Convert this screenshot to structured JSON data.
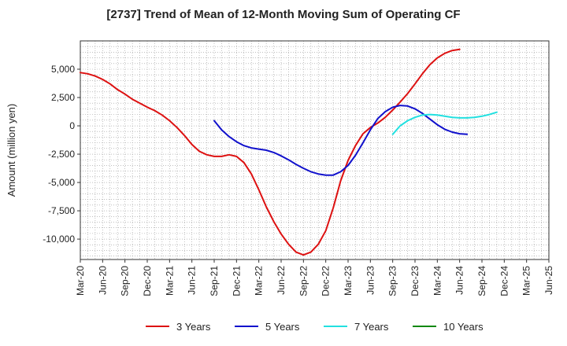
{
  "chart_data": {
    "type": "line",
    "title": "[2737]  Trend of Mean of 12-Month Moving Sum of Operating CF",
    "xlabel": "",
    "ylabel": "Amount (million yen)",
    "ylim": [
      -11800,
      7500
    ],
    "x_ticks": [
      "Mar-20",
      "Jun-20",
      "Sep-20",
      "Dec-20",
      "Mar-21",
      "Jun-21",
      "Sep-21",
      "Dec-21",
      "Mar-22",
      "Jun-22",
      "Sep-22",
      "Dec-22",
      "Mar-23",
      "Jun-23",
      "Sep-23",
      "Dec-23",
      "Mar-24",
      "Jun-24",
      "Sep-24",
      "Dec-24",
      "Mar-25",
      "Jun-25"
    ],
    "y_ticks": [
      5000,
      2500,
      0,
      -2500,
      -5000,
      -7500,
      -10000
    ],
    "y_tick_labels": [
      "5,000",
      "2,500",
      "0",
      "-2,500",
      "-5,000",
      "-7,500",
      "-10,000"
    ],
    "series": [
      {
        "name": "3 Years",
        "color": "#dd1111",
        "start": "Mar-20",
        "values": [
          4700,
          4600,
          4400,
          4100,
          3700,
          3200,
          2800,
          2350,
          2000,
          1650,
          1350,
          950,
          450,
          -150,
          -850,
          -1650,
          -2250,
          -2550,
          -2700,
          -2700,
          -2550,
          -2700,
          -3250,
          -4250,
          -5650,
          -7150,
          -8450,
          -9550,
          -10450,
          -11150,
          -11400,
          -11150,
          -10450,
          -9250,
          -7250,
          -4850,
          -3050,
          -1750,
          -700,
          -150,
          250,
          750,
          1400,
          2100,
          2850,
          3700,
          4600,
          5400,
          6000,
          6400,
          6650,
          6750
        ]
      },
      {
        "name": "5 Years",
        "color": "#1111cc",
        "start": "Sep-21",
        "values": [
          450,
          -350,
          -950,
          -1400,
          -1750,
          -1950,
          -2050,
          -2150,
          -2350,
          -2650,
          -3000,
          -3400,
          -3750,
          -4050,
          -4250,
          -4350,
          -4350,
          -4050,
          -3500,
          -2600,
          -1500,
          -350,
          650,
          1250,
          1650,
          1800,
          1750,
          1500,
          1100,
          600,
          100,
          -300,
          -550,
          -700,
          -750
        ]
      },
      {
        "name": "7 Years",
        "color": "#22e0e0",
        "start": "Sep-23",
        "values": [
          -750,
          0,
          450,
          750,
          950,
          1000,
          950,
          850,
          750,
          700,
          700,
          750,
          850,
          1000,
          1200
        ]
      },
      {
        "name": "10 Years",
        "color": "#118811",
        "start": "Mar-25",
        "values": []
      }
    ],
    "legend_position": "bottom",
    "grid": true
  }
}
